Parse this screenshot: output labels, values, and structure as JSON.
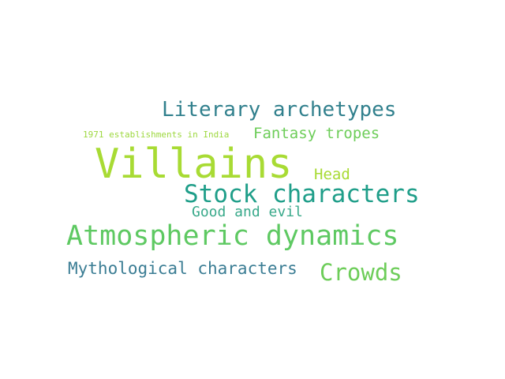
{
  "words": [
    {
      "id": "literary",
      "text": "Literary archetypes",
      "color": "#31808d"
    },
    {
      "id": "1971",
      "text": "1971 establishments in India",
      "color": "#9ed840"
    },
    {
      "id": "fantasy",
      "text": "Fantasy tropes",
      "color": "#6dcd59"
    },
    {
      "id": "villains",
      "text": "Villains",
      "color": "#a8db34"
    },
    {
      "id": "head",
      "text": "Head",
      "color": "#a8db34"
    },
    {
      "id": "stock",
      "text": "Stock characters",
      "color": "#1f9e89"
    },
    {
      "id": "goodevil",
      "text": "Good and evil",
      "color": "#38a98a"
    },
    {
      "id": "atmospheric",
      "text": "Atmospheric dynamics",
      "color": "#5ec962"
    },
    {
      "id": "mythological",
      "text": "Mythological characters",
      "color": "#3b7d94"
    },
    {
      "id": "crowds",
      "text": "Crowds",
      "color": "#6dcd59"
    }
  ]
}
